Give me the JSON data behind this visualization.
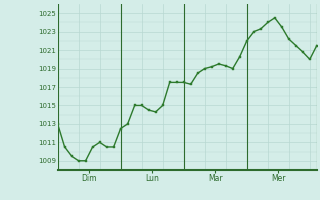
{
  "y_values": [
    1013,
    1010.5,
    1009.5,
    1009,
    1009,
    1010.5,
    1011,
    1010.5,
    1010.5,
    1012.5,
    1013,
    1015,
    1015,
    1014.5,
    1014.3,
    1015,
    1017.5,
    1017.5,
    1017.5,
    1017.3,
    1018.5,
    1019,
    1019.2,
    1019.5,
    1019.3,
    1019,
    1020.3,
    1022,
    1023,
    1023.3,
    1024,
    1024.5,
    1023.5,
    1022.2,
    1021.5,
    1020.8,
    1020,
    1021.5
  ],
  "x_tick_positions": [
    4.5,
    13.5,
    22.5,
    31.5
  ],
  "x_tick_labels": [
    "Dim",
    "Lun",
    "Mar",
    "Mer"
  ],
  "x_vlines": [
    0,
    9,
    18,
    27,
    37
  ],
  "yticks": [
    1009,
    1011,
    1013,
    1015,
    1017,
    1019,
    1021,
    1023,
    1025
  ],
  "ylim": [
    1008.0,
    1026.0
  ],
  "xlim": [
    0,
    37
  ],
  "line_color": "#2d7a2d",
  "marker_color": "#2d7a2d",
  "bg_color": "#d4ede8",
  "grid_color": "#b8d8d2",
  "spine_color": "#2d6b2d",
  "tick_label_color": "#2d6b2d",
  "vline_color": "#2d6b2d",
  "marker_size": 2.0,
  "line_width": 1.0,
  "figsize": [
    3.2,
    2.0
  ],
  "dpi": 100
}
